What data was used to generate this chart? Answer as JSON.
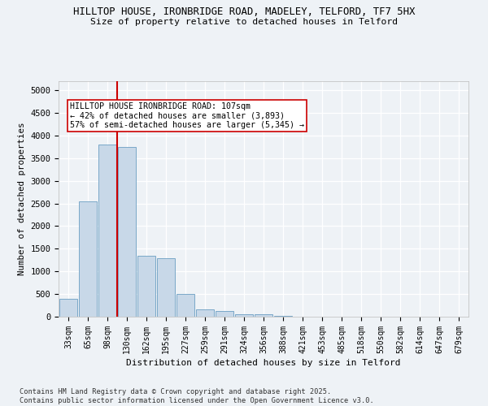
{
  "title1": "HILLTOP HOUSE, IRONBRIDGE ROAD, MADELEY, TELFORD, TF7 5HX",
  "title2": "Size of property relative to detached houses in Telford",
  "xlabel": "Distribution of detached houses by size in Telford",
  "ylabel": "Number of detached properties",
  "categories": [
    "33sqm",
    "65sqm",
    "98sqm",
    "130sqm",
    "162sqm",
    "195sqm",
    "227sqm",
    "259sqm",
    "291sqm",
    "324sqm",
    "356sqm",
    "388sqm",
    "421sqm",
    "453sqm",
    "485sqm",
    "518sqm",
    "550sqm",
    "582sqm",
    "614sqm",
    "647sqm",
    "679sqm"
  ],
  "values": [
    390,
    2550,
    3800,
    3750,
    1350,
    1300,
    500,
    170,
    130,
    60,
    50,
    10,
    0,
    0,
    0,
    0,
    0,
    0,
    0,
    0,
    0
  ],
  "bar_color": "#c8d8e8",
  "bar_edgecolor": "#7aa8c8",
  "vline_color": "#cc0000",
  "annotation_text": "HILLTOP HOUSE IRONBRIDGE ROAD: 107sqm\n← 42% of detached houses are smaller (3,893)\n57% of semi-detached houses are larger (5,345) →",
  "ylim": [
    0,
    5200
  ],
  "yticks": [
    0,
    500,
    1000,
    1500,
    2000,
    2500,
    3000,
    3500,
    4000,
    4500,
    5000
  ],
  "background_color": "#eef2f6",
  "grid_color": "#ffffff",
  "footer": "Contains HM Land Registry data © Crown copyright and database right 2025.\nContains public sector information licensed under the Open Government Licence v3.0.",
  "figsize": [
    6.0,
    5.0
  ],
  "dpi": 100
}
